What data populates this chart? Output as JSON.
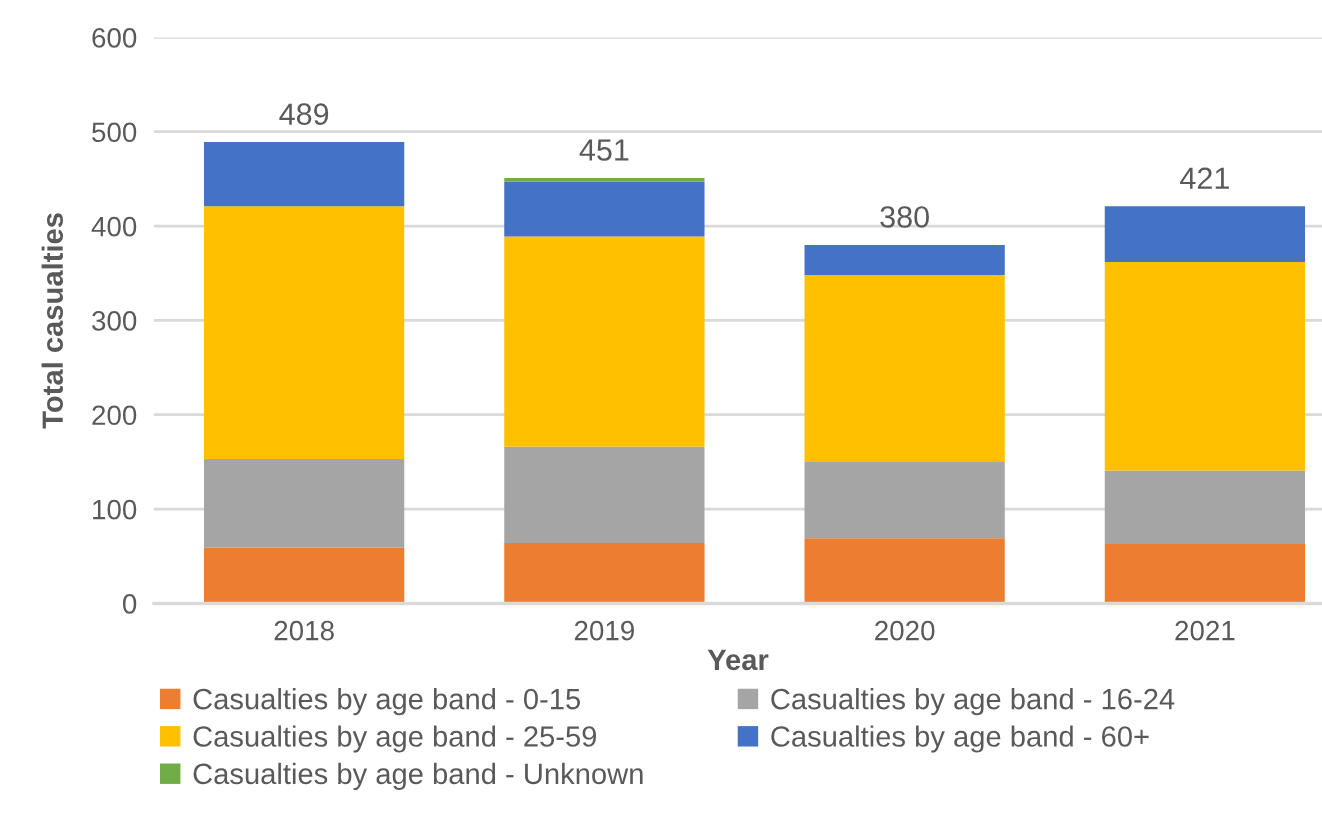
{
  "chart_data": {
    "type": "bar",
    "stacked": true,
    "xlabel": "Year",
    "ylabel": "Total casualties",
    "categories": [
      "2018",
      "2019",
      "2020",
      "2021"
    ],
    "series": [
      {
        "name": "Casualties by age band - 0-15",
        "color": "#ed7d31",
        "values": [
          59,
          64,
          69,
          63
        ]
      },
      {
        "name": "Casualties by age band - 16-24",
        "color": "#a5a5a5",
        "values": [
          94,
          102,
          81,
          78
        ]
      },
      {
        "name": "Casualties by age band - 25-59",
        "color": "#ffc000",
        "values": [
          268,
          223,
          198,
          221
        ]
      },
      {
        "name": "Casualties by age band - 60+",
        "color": "#4472c4",
        "values": [
          68,
          58,
          32,
          59
        ]
      },
      {
        "name": "Casualties by age band - Unknown",
        "color": "#70ad47",
        "values": [
          null,
          4,
          null,
          null
        ]
      }
    ],
    "totals": [
      "489",
      "451",
      "380",
      "421"
    ],
    "ylim": [
      0,
      600
    ],
    "yticks": [
      0,
      100,
      200,
      300,
      400,
      500,
      600
    ],
    "grid": "y",
    "legend": "bottom"
  }
}
